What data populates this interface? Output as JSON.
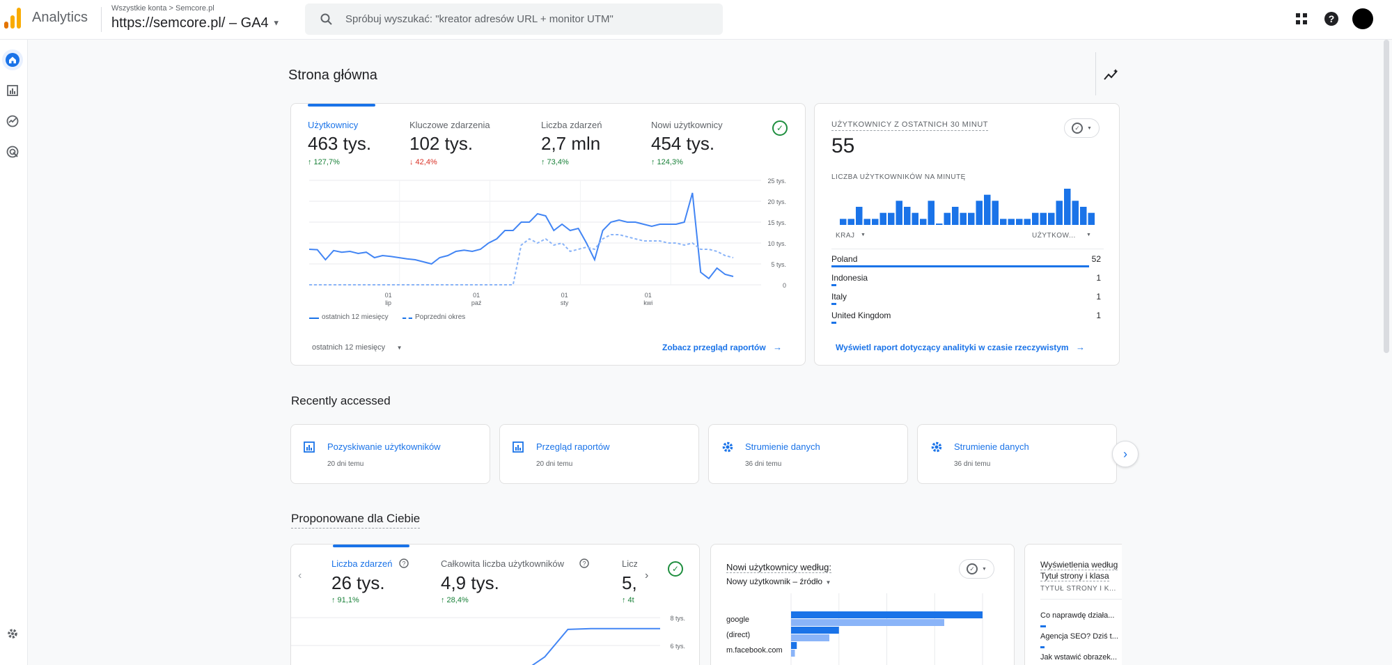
{
  "header": {
    "app_name": "Analytics",
    "breadcrumb": "Wszystkie konta > Semcore.pl",
    "property": "https://semcore.pl/ – GA4",
    "search_placeholder": "Spróbuj wyszukać: \"kreator adresów URL + monitor UTM\""
  },
  "colors": {
    "accent": "#1a73e8",
    "light_accent": "#8ab4f8",
    "positive": "#188038",
    "negative": "#d93025"
  },
  "rail": {
    "items": [
      {
        "name": "home-icon",
        "active": true
      },
      {
        "name": "reports-icon",
        "active": false
      },
      {
        "name": "explore-icon",
        "active": false
      },
      {
        "name": "advertising-icon",
        "active": false
      }
    ]
  },
  "page_title": "Strona główna",
  "overview": {
    "metrics": [
      {
        "label": "Użytkownicy",
        "value": "463 tys.",
        "delta": "↑ 127,7%",
        "direction": "up"
      },
      {
        "label": "Kluczowe zdarzenia",
        "value": "102 tys.",
        "delta": "↓ 42,4%",
        "direction": "down"
      },
      {
        "label": "Liczba zdarzeń",
        "value": "2,7 mln",
        "delta": "↑ 73,4%",
        "direction": "up"
      },
      {
        "label": "Nowi użytkownicy",
        "value": "454 tys.",
        "delta": "↑ 124,3%",
        "direction": "up"
      }
    ],
    "legend_current": "ostatnich 12 miesięcy",
    "legend_previous": "Poprzedni okres",
    "date_range": "ostatnich 12 miesięcy",
    "report_link": "Zobacz przegląd raportów"
  },
  "chart_data": [
    {
      "type": "line",
      "y_ticks": [
        "25 tys.",
        "20 tys.",
        "15 tys.",
        "10 tys.",
        "5 tys.",
        "0"
      ],
      "x_ticks": [
        {
          "day": "01",
          "month": "lip"
        },
        {
          "day": "01",
          "month": "paź"
        },
        {
          "day": "01",
          "month": "sty"
        },
        {
          "day": "01",
          "month": "kwi"
        }
      ],
      "ylim": [
        0,
        25000
      ],
      "series": [
        {
          "name": "ostatnich 12 miesięcy",
          "style": "solid",
          "values": [
            8500,
            8400,
            6000,
            8200,
            7800,
            8000,
            7500,
            7800,
            6500,
            7000,
            6800,
            6500,
            6200,
            6000,
            5500,
            5000,
            6500,
            7000,
            8000,
            8300,
            8000,
            8500,
            10000,
            11000,
            13000,
            13000,
            15000,
            15000,
            17000,
            16500,
            13000,
            14500,
            13000,
            13500,
            10000,
            6000,
            13000,
            15000,
            15500,
            15000,
            15000,
            14500,
            14000,
            14500,
            14500,
            14500,
            15000,
            22000,
            3000,
            1500,
            4000,
            2500,
            2000
          ]
        },
        {
          "name": "Poprzedni okres",
          "style": "dashed",
          "values": [
            0,
            0,
            0,
            0,
            0,
            0,
            0,
            0,
            0,
            0,
            0,
            0,
            0,
            0,
            0,
            0,
            0,
            0,
            0,
            0,
            0,
            0,
            0,
            0,
            0,
            0,
            9500,
            11000,
            10000,
            11000,
            9500,
            10000,
            8000,
            8500,
            9000,
            8500,
            11000,
            12000,
            12000,
            11500,
            11000,
            10500,
            10500,
            10500,
            10000,
            10000,
            9500,
            10000,
            8500,
            8500,
            8000,
            7000,
            6500
          ]
        }
      ]
    },
    {
      "type": "bar",
      "title": "LICZBA UŻYTKOWNIKÓW NA MINUTĘ",
      "values": [
        1,
        1,
        3,
        1,
        1,
        2,
        2,
        4,
        3,
        2,
        1,
        4,
        0,
        2,
        3,
        2,
        2,
        4,
        5,
        4,
        1,
        1,
        1,
        1,
        2,
        2,
        2,
        4,
        6,
        4,
        3,
        2
      ],
      "ylim": [
        0,
        6
      ]
    },
    {
      "type": "line",
      "y_ticks": [
        "8 tys.",
        "6 tys."
      ],
      "series": [
        {
          "name": "",
          "values": [
            0,
            0,
            0,
            0,
            0,
            0,
            0,
            0,
            0,
            0,
            1000,
            3000,
            6500,
            6600,
            6600,
            6600,
            6600
          ]
        }
      ]
    },
    {
      "type": "bar",
      "categories": [
        "google",
        "(direct)",
        "m.facebook.com"
      ],
      "series": [
        {
          "name": "",
          "values": [
            100,
            25,
            3
          ]
        },
        {
          "name": "",
          "values": [
            80,
            20,
            2
          ]
        }
      ]
    }
  ],
  "realtime": {
    "title": "UŻYTKOWNICY Z OSTATNICH 30 MINUT",
    "count": "55",
    "col_country": "KRAJ",
    "col_users": "UŻYTKOW...",
    "rows": [
      {
        "country": "Poland",
        "value": "52",
        "fraction": 1.0
      },
      {
        "country": "Indonesia",
        "value": "1",
        "fraction": 0.02
      },
      {
        "country": "Italy",
        "value": "1",
        "fraction": 0.02
      },
      {
        "country": "United Kingdom",
        "value": "1",
        "fraction": 0.02
      }
    ],
    "link": "Wyświetl raport dotyczący analityki w czasie rzeczywistym"
  },
  "recent": {
    "title": "Recently accessed",
    "items": [
      {
        "icon": "report-icon",
        "label": "Pozyskiwanie użytkowników",
        "sub": "20 dni temu"
      },
      {
        "icon": "report-icon",
        "label": "Przegląd raportów",
        "sub": "20 dni temu"
      },
      {
        "icon": "gear-icon",
        "label": "Strumienie danych",
        "sub": "36 dni temu"
      },
      {
        "icon": "gear-icon",
        "label": "Strumienie danych",
        "sub": "36 dni temu"
      }
    ]
  },
  "suggested": {
    "title": "Proponowane dla Ciebie",
    "card1": {
      "metrics": [
        {
          "label": "Liczba zdarzeń",
          "value": "26 tys.",
          "delta": "↑ 91,1%"
        },
        {
          "label": "Całkowita liczba użytkowników",
          "value": "4,9 tys.",
          "delta": "↑ 28,4%"
        },
        {
          "label": "Licz",
          "value": "5,",
          "delta": "↑ 4t"
        }
      ]
    },
    "card2": {
      "title": "Nowi użytkownicy według:",
      "subtitle": "Nowy użytkownik – źródło"
    },
    "card3": {
      "title": "Wyświetlenia według",
      "subtitle": "Tytuł strony i klasa",
      "col": "TYTUŁ STRONY I K...",
      "rows": [
        "Co naprawdę działa...",
        "Agencja SEO? Dziś t...",
        "Jak wstawić obrazek..."
      ]
    }
  }
}
